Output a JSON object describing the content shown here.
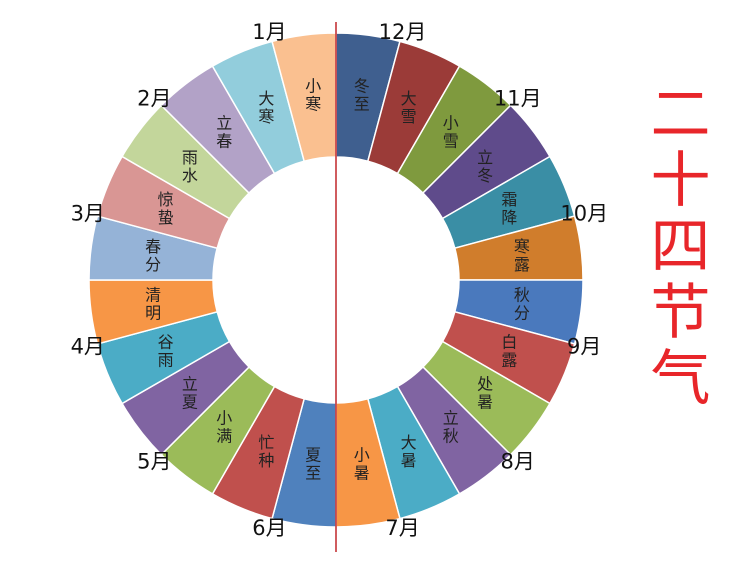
{
  "title": "二十四节气",
  "segments": [
    {
      "label": "冬至",
      "color": "#3f5f8f"
    },
    {
      "label": "大雪",
      "color": "#9b3b38"
    },
    {
      "label": "小雪",
      "color": "#7f9a3e"
    },
    {
      "label": "立冬",
      "color": "#5f4b8b"
    },
    {
      "label": "霜降",
      "color": "#3a8ea5"
    },
    {
      "label": "寒露",
      "color": "#d07d2c"
    },
    {
      "label": "秋分",
      "color": "#4a79bd"
    },
    {
      "label": "白露",
      "color": "#c0504d"
    },
    {
      "label": "处暑",
      "color": "#9bbb59"
    },
    {
      "label": "立秋",
      "color": "#8064a2"
    },
    {
      "label": "大暑",
      "color": "#4bacc6"
    },
    {
      "label": "小暑",
      "color": "#f79646"
    },
    {
      "label": "夏至",
      "color": "#4f81bd"
    },
    {
      "label": "忙种",
      "color": "#c0504d"
    },
    {
      "label": "小满",
      "color": "#9bbb59"
    },
    {
      "label": "立夏",
      "color": "#8064a2"
    },
    {
      "label": "谷雨",
      "color": "#4bacc6"
    },
    {
      "label": "清明",
      "color": "#f79646"
    },
    {
      "label": "春分",
      "color": "#95b3d7"
    },
    {
      "label": "惊蛰",
      "color": "#d99694"
    },
    {
      "label": "雨水",
      "color": "#c3d69b"
    },
    {
      "label": "立春",
      "color": "#b2a2c7"
    },
    {
      "label": "大寒",
      "color": "#92cddc"
    },
    {
      "label": "小寒",
      "color": "#fac090"
    }
  ],
  "months": [
    "12月",
    "11月",
    "10月",
    "9月",
    "8月",
    "7月",
    "6月",
    "5月",
    "4月",
    "3月",
    "2月",
    "1月"
  ]
}
